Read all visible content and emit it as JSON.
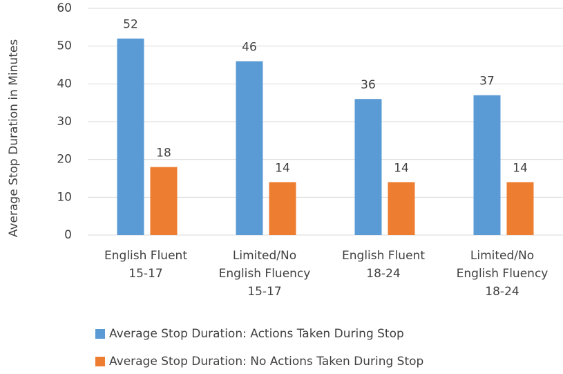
{
  "chart_data": {
    "type": "bar",
    "y_label": "Average Stop Duration in Minutes",
    "categories": [
      "English Fluent\n15-17",
      "Limited/No\nEnglish Fluency\n15-17",
      "English Fluent\n18-24",
      "Limited/No\nEnglish Fluency\n18-24"
    ],
    "series": [
      {
        "name": "Average Stop Duration: Actions Taken During Stop",
        "color": "#5b9bd5",
        "values": [
          52,
          46,
          36,
          37
        ]
      },
      {
        "name": "Average Stop Duration: No Actions Taken During Stop",
        "color": "#ed7d31",
        "values": [
          18,
          14,
          14,
          14
        ]
      }
    ],
    "ylim": [
      0,
      60
    ],
    "yticks": [
      0,
      10,
      20,
      30,
      40,
      50,
      60
    ],
    "grid": true,
    "legend": "bottom"
  }
}
